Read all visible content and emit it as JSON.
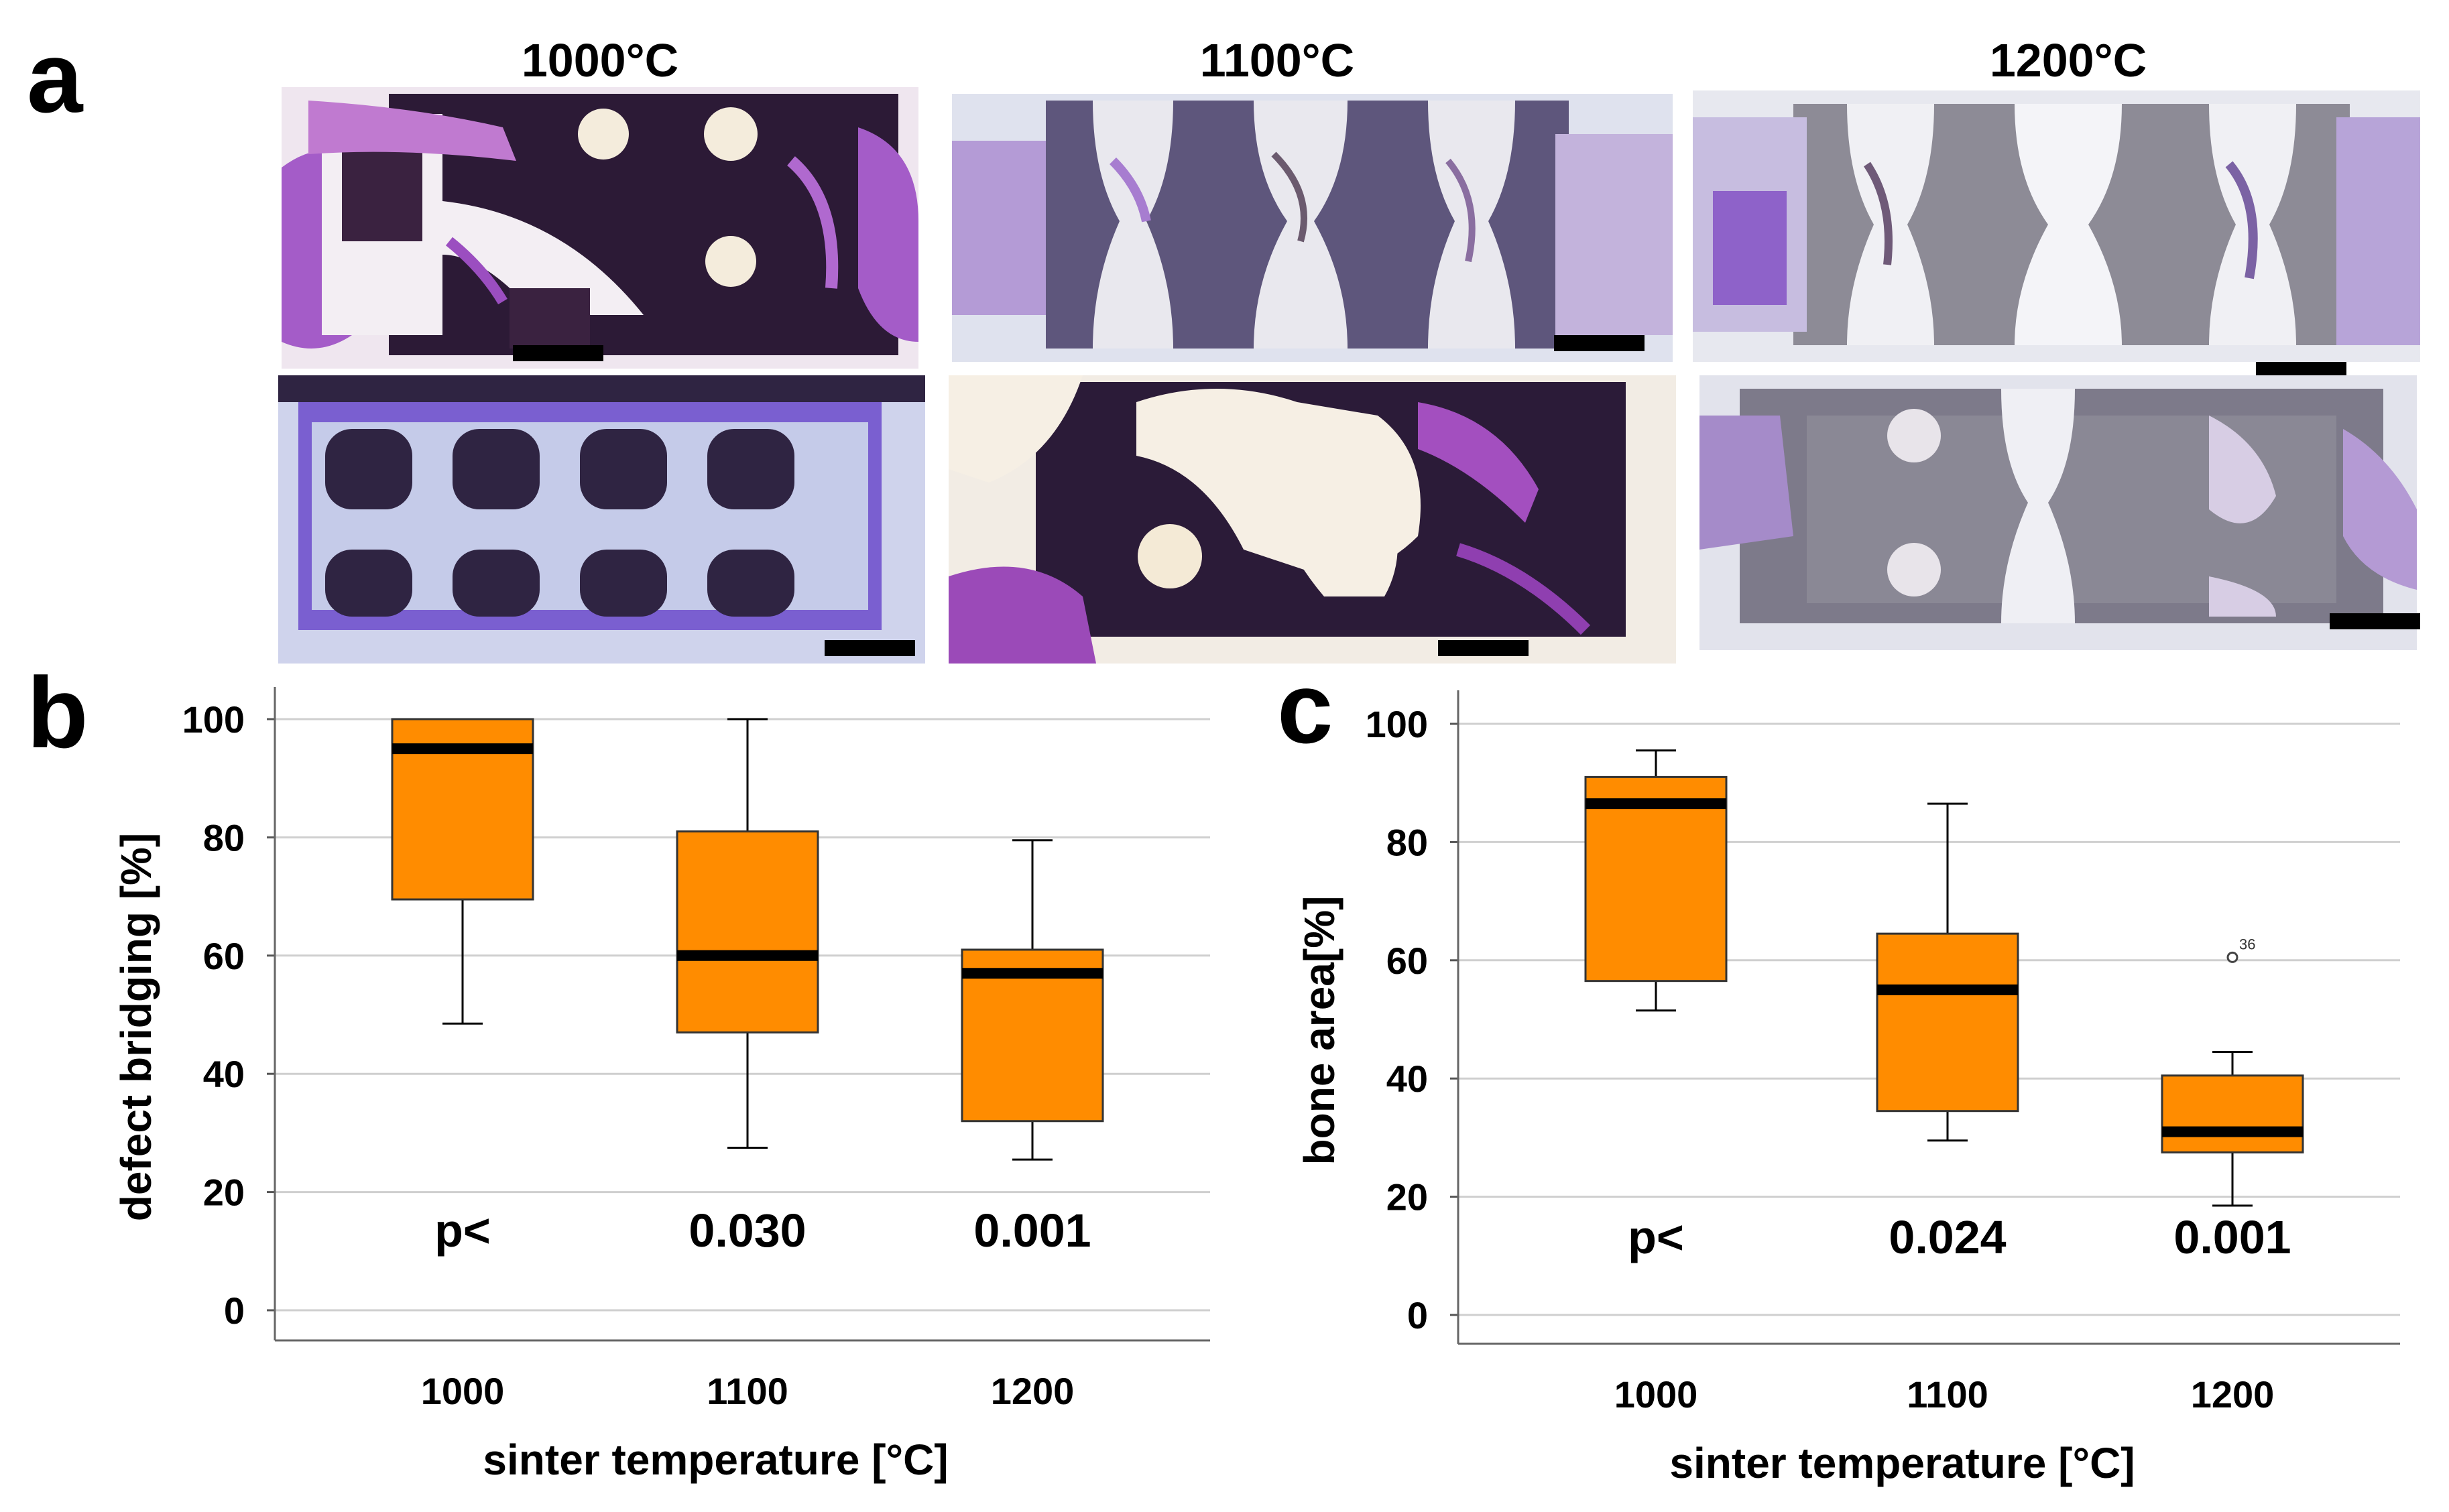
{
  "panel_a": {
    "letter": "a",
    "column_titles": [
      "1000°C",
      "1100°C",
      "1200°C"
    ],
    "stain_colors": {
      "implant_dark": "#2a1d3a",
      "implant_grey": "#8c8a96",
      "bone_purple": "#8a4fc4",
      "tissue_light": "#e8e2ea",
      "background": "#d8dbe8"
    }
  },
  "chart_data": [
    {
      "id": "b",
      "letter": "b",
      "type": "box",
      "categories": [
        "1000",
        "1100",
        "1200"
      ],
      "xlabel": "sinter temperature [°C]",
      "ylabel": "defect bridging [%]",
      "ylim": [
        0,
        100
      ],
      "yticks": [
        0,
        20,
        40,
        60,
        80,
        100
      ],
      "grid": true,
      "box_color": "#ff8c00",
      "boxes": [
        {
          "category": "1000",
          "min": 48.5,
          "q1": 69.5,
          "median": 95,
          "q3": 100,
          "max": 100
        },
        {
          "category": "1100",
          "min": 27.5,
          "q1": 47,
          "median": 60,
          "q3": 81,
          "max": 100
        },
        {
          "category": "1200",
          "min": 25.5,
          "q1": 32,
          "median": 57,
          "q3": 61,
          "max": 79.5
        }
      ],
      "outliers": [],
      "p_labels": [
        "p<",
        "0.030",
        "0.001"
      ]
    },
    {
      "id": "c",
      "letter": "c",
      "type": "box",
      "categories": [
        "1000",
        "1100",
        "1200"
      ],
      "xlabel": "sinter temperature [°C]",
      "ylabel": "bone area[%]",
      "ylim": [
        0,
        100
      ],
      "yticks": [
        0,
        20,
        40,
        60,
        80,
        100
      ],
      "grid": true,
      "box_color": "#ff8c00",
      "boxes": [
        {
          "category": "1000",
          "min": 51.5,
          "q1": 56.5,
          "median": 86.5,
          "q3": 91,
          "max": 95.5
        },
        {
          "category": "1100",
          "min": 29.5,
          "q1": 34.5,
          "median": 55,
          "q3": 64.5,
          "max": 86.5
        },
        {
          "category": "1200",
          "min": 18.5,
          "q1": 27.5,
          "median": 31,
          "q3": 40.5,
          "max": 44.5
        }
      ],
      "outliers": [
        {
          "category": "1200",
          "value": 60.5,
          "label": "36"
        }
      ],
      "p_labels": [
        "p<",
        "0.024",
        "0.001"
      ]
    }
  ]
}
